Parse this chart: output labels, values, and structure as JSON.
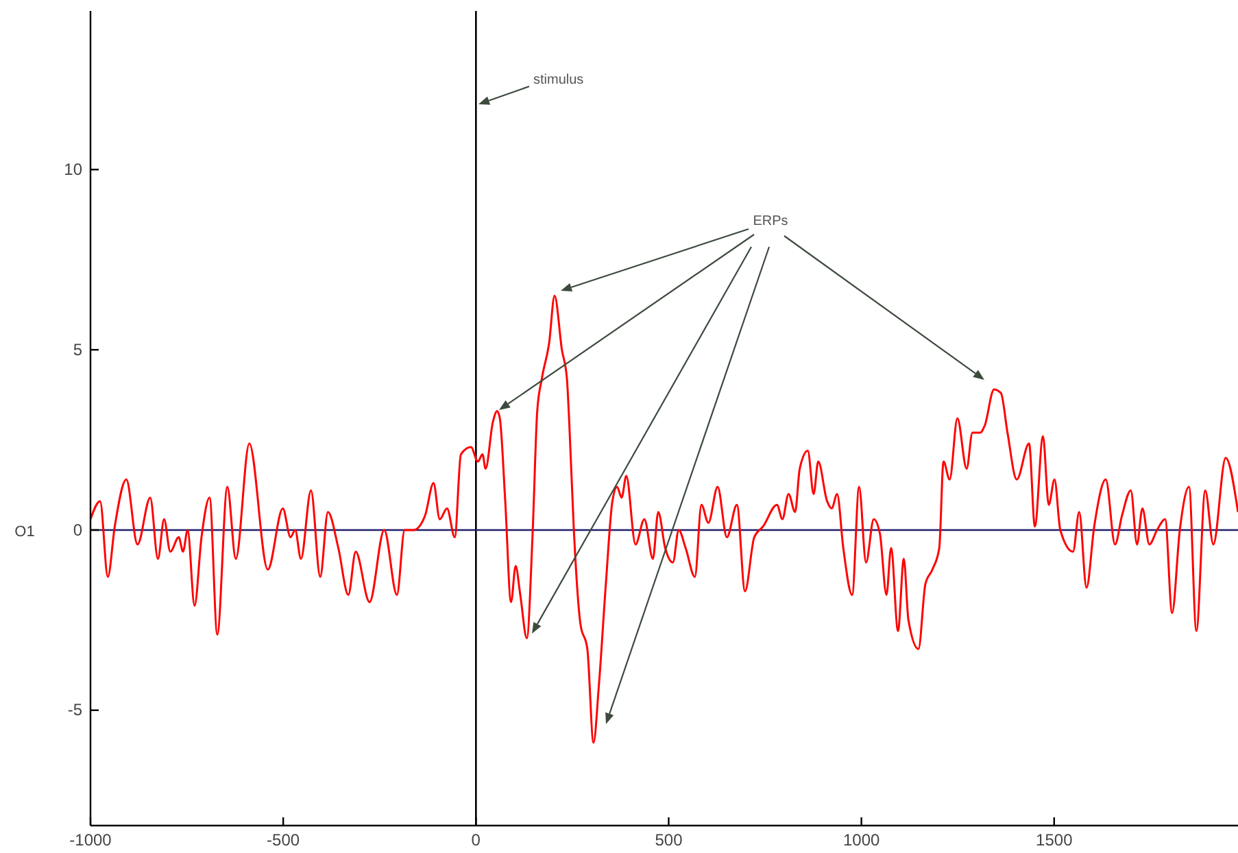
{
  "chart_data": {
    "type": "line",
    "ylabel": "O1",
    "annotations": [
      "stimulus",
      "ERPs"
    ],
    "x": [
      -1000,
      -975,
      -955,
      -937,
      -907,
      -878,
      -845,
      -825,
      -809,
      -793,
      -771,
      -760,
      -748,
      -730,
      -712,
      -691,
      -671,
      -645,
      -623,
      -588,
      -540,
      -501,
      -481,
      -469,
      -454,
      -428,
      -404,
      -384,
      -357,
      -331,
      -312,
      -276,
      -238,
      -205,
      -185,
      -161,
      -132,
      -110,
      -94,
      -75,
      -55,
      -39,
      -13,
      5,
      17,
      25,
      44,
      55,
      62,
      76,
      91,
      103,
      115,
      132,
      147,
      159,
      171,
      190,
      204,
      223,
      236,
      242,
      254,
      271,
      289,
      305,
      319,
      337,
      354,
      366,
      378,
      390,
      414,
      437,
      459,
      473,
      491,
      511,
      526,
      544,
      568,
      585,
      603,
      627,
      651,
      677,
      698,
      722,
      745,
      781,
      795,
      811,
      828,
      840,
      861,
      876,
      888,
      911,
      923,
      937,
      953,
      976,
      994,
      1012,
      1032,
      1048,
      1065,
      1077,
      1095,
      1110,
      1122,
      1148,
      1166,
      1184,
      1202,
      1213,
      1229,
      1249,
      1273,
      1288,
      1308,
      1320,
      1344,
      1362,
      1379,
      1403,
      1435,
      1450,
      1471,
      1486,
      1501,
      1516,
      1549,
      1565,
      1584,
      1604,
      1634,
      1658,
      1676,
      1699,
      1715,
      1729,
      1747,
      1767,
      1788,
      1806,
      1826,
      1850,
      1869,
      1892,
      1913,
      1945,
      1977
    ],
    "series": [
      {
        "color": "#ff0000",
        "values": [
          0.3,
          0.8,
          -1.3,
          0.1,
          1.4,
          -0.4,
          0.9,
          -0.8,
          0.3,
          -0.6,
          -0.2,
          -0.6,
          0.0,
          -2.1,
          -0.2,
          0.9,
          -2.9,
          1.2,
          -0.8,
          2.4,
          -1.1,
          0.6,
          -0.2,
          0.0,
          -0.8,
          1.1,
          -1.3,
          0.5,
          -0.5,
          -1.8,
          -0.6,
          -2.0,
          0.0,
          -1.8,
          0.0,
          0.0,
          0.4,
          1.3,
          0.3,
          0.6,
          -0.2,
          2.1,
          2.3,
          1.9,
          2.1,
          1.7,
          3.0,
          3.3,
          3.1,
          0.8,
          -2.0,
          -1.0,
          -1.8,
          -3.0,
          -0.1,
          3.3,
          4.2,
          5.2,
          6.5,
          5.0,
          4.2,
          3.0,
          0.0,
          -2.6,
          -3.3,
          -5.9,
          -4.3,
          -1.5,
          0.8,
          1.2,
          0.9,
          1.5,
          -0.4,
          0.3,
          -0.8,
          0.5,
          -0.5,
          -0.9,
          0.0,
          -0.5,
          -1.3,
          0.7,
          0.2,
          1.2,
          -0.2,
          0.7,
          -1.7,
          -0.2,
          0.1,
          0.7,
          0.3,
          1.0,
          0.5,
          1.7,
          2.2,
          1.0,
          1.9,
          0.8,
          0.6,
          1.0,
          -0.5,
          -1.8,
          1.2,
          -0.9,
          0.3,
          -0.1,
          -1.8,
          -0.5,
          -2.8,
          -0.8,
          -2.5,
          -3.3,
          -1.5,
          -1.1,
          -0.5,
          1.9,
          1.4,
          3.1,
          1.7,
          2.7,
          2.7,
          2.9,
          3.9,
          3.8,
          2.7,
          1.4,
          2.4,
          0.1,
          2.6,
          0.7,
          1.4,
          0.0,
          -0.6,
          0.5,
          -1.6,
          0.1,
          1.4,
          -0.4,
          0.4,
          1.1,
          -0.4,
          0.6,
          -0.4,
          0.0,
          0.3,
          -2.3,
          0.0,
          1.2,
          -2.8,
          1.1,
          -0.4,
          2.0,
          0.5
        ]
      }
    ],
    "xlim": [
      -1000,
      1977
    ],
    "ylim": [
      -8.2,
      14.4
    ],
    "xticks": [
      -1000,
      -500,
      0,
      500,
      1000,
      1500
    ],
    "yticks": [
      -5,
      0,
      5,
      10
    ],
    "ref_lines": [
      {
        "axis": "x",
        "value": 0,
        "color": "#000000"
      },
      {
        "axis": "y",
        "value": 0,
        "color": "#1f1f6e"
      }
    ],
    "line_style": "solid"
  }
}
